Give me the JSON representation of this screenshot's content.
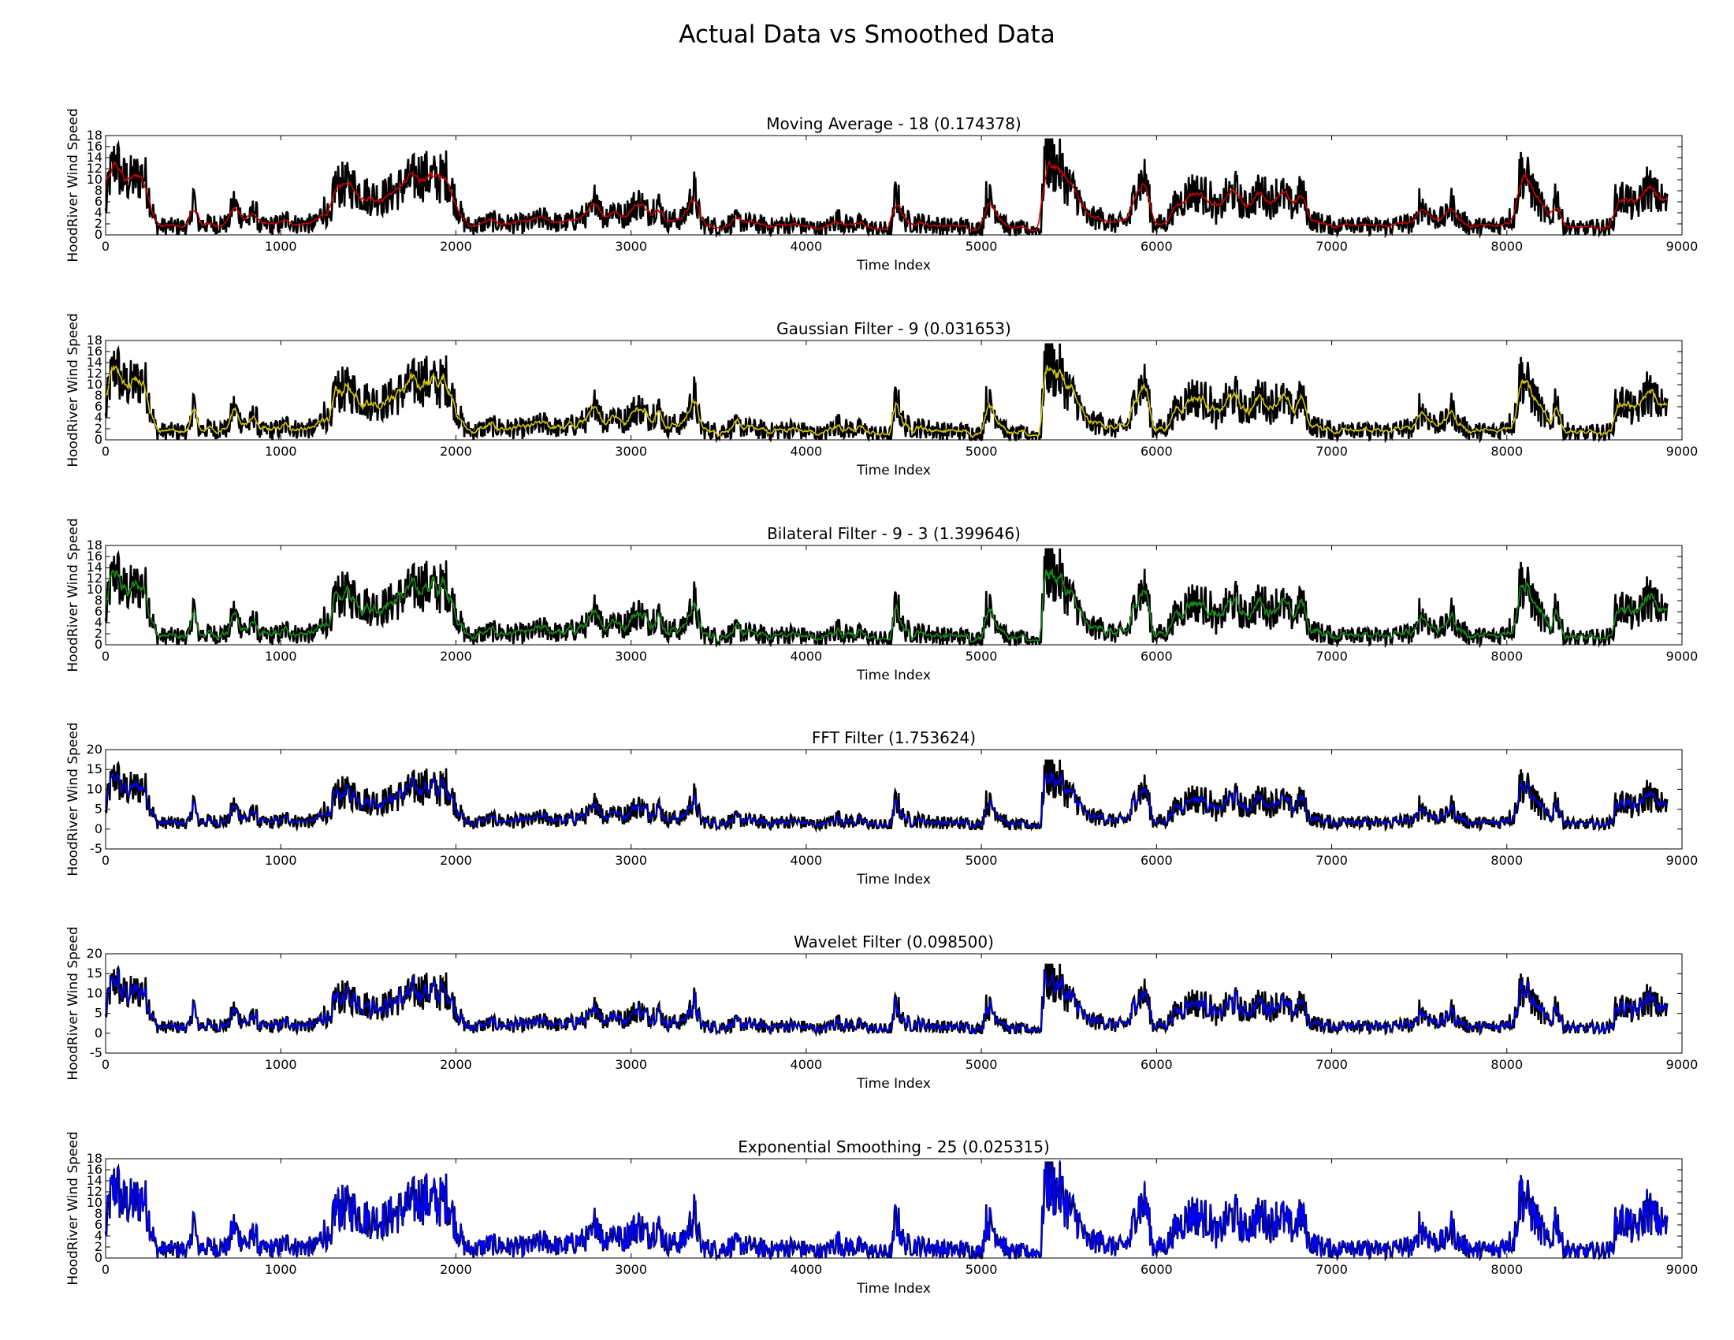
{
  "figure": {
    "title": "Actual Data vs Smoothed Data"
  },
  "chart_data": [
    {
      "type": "line",
      "title": "Moving Average - 18 (0.174378)",
      "xlabel": "Time Index",
      "ylabel": "HoodRiver Wind Speed",
      "xlim": [
        0,
        9000
      ],
      "ylim": [
        0,
        18
      ],
      "xticks": [
        0,
        1000,
        2000,
        3000,
        4000,
        5000,
        6000,
        7000,
        8000,
        9000
      ],
      "yticks": [
        0,
        2,
        4,
        6,
        8,
        10,
        12,
        14,
        16,
        18
      ],
      "smooth_window": 7,
      "series": [
        {
          "color": "#000000",
          "role": "actual"
        },
        {
          "color": "#cc0000",
          "role": "smoothed"
        }
      ]
    },
    {
      "type": "line",
      "title": "Gaussian Filter - 9 (0.031653)",
      "xlabel": "Time Index",
      "ylabel": "HoodRiver Wind Speed",
      "xlim": [
        0,
        9000
      ],
      "ylim": [
        0,
        18
      ],
      "xticks": [
        0,
        1000,
        2000,
        3000,
        4000,
        5000,
        6000,
        7000,
        8000,
        9000
      ],
      "yticks": [
        0,
        2,
        4,
        6,
        8,
        10,
        12,
        14,
        16,
        18
      ],
      "smooth_window": 4,
      "series": [
        {
          "color": "#000000",
          "role": "actual"
        },
        {
          "color": "#d4c60a",
          "role": "smoothed"
        }
      ]
    },
    {
      "type": "line",
      "title": "Bilateral Filter - 9 - 3 (1.399646)",
      "xlabel": "Time Index",
      "ylabel": "HoodRiver Wind Speed",
      "xlim": [
        0,
        9000
      ],
      "ylim": [
        0,
        18
      ],
      "xticks": [
        0,
        1000,
        2000,
        3000,
        4000,
        5000,
        6000,
        7000,
        8000,
        9000
      ],
      "yticks": [
        0,
        2,
        4,
        6,
        8,
        10,
        12,
        14,
        16,
        18
      ],
      "smooth_window": 3,
      "series": [
        {
          "color": "#000000",
          "role": "actual"
        },
        {
          "color": "#1a8c1a",
          "role": "smoothed"
        }
      ]
    },
    {
      "type": "line",
      "title": "FFT Filter (1.753624)",
      "xlabel": "Time Index",
      "ylabel": "HoodRiver Wind Speed",
      "xlim": [
        0,
        9000
      ],
      "ylim": [
        -5,
        20
      ],
      "xticks": [
        0,
        1000,
        2000,
        3000,
        4000,
        5000,
        6000,
        7000,
        8000,
        9000
      ],
      "yticks": [
        -5,
        0,
        5,
        10,
        15,
        20
      ],
      "smooth_window": 2,
      "series": [
        {
          "color": "#000000",
          "role": "actual"
        },
        {
          "color": "#0000ff",
          "role": "smoothed"
        }
      ]
    },
    {
      "type": "line",
      "title": "Wavelet Filter (0.098500)",
      "xlabel": "Time Index",
      "ylabel": "HoodRiver Wind Speed",
      "xlim": [
        0,
        9000
      ],
      "ylim": [
        -5,
        20
      ],
      "xticks": [
        0,
        1000,
        2000,
        3000,
        4000,
        5000,
        6000,
        7000,
        8000,
        9000
      ],
      "yticks": [
        -5,
        0,
        5,
        10,
        15,
        20
      ],
      "smooth_window": 1,
      "series": [
        {
          "color": "#000000",
          "role": "actual"
        },
        {
          "color": "#0000ff",
          "role": "smoothed"
        }
      ]
    },
    {
      "type": "line",
      "title": "Exponential Smoothing - 25 (0.025315)",
      "xlabel": "Time Index",
      "ylabel": "HoodRiver Wind Speed",
      "xlim": [
        0,
        9000
      ],
      "ylim": [
        0,
        18
      ],
      "xticks": [
        0,
        1000,
        2000,
        3000,
        4000,
        5000,
        6000,
        7000,
        8000,
        9000
      ],
      "yticks": [
        0,
        2,
        4,
        6,
        8,
        10,
        12,
        14,
        16,
        18
      ],
      "smooth_window": 0,
      "series": [
        {
          "color": "#000000",
          "role": "actual"
        },
        {
          "color": "#0000ff",
          "role": "smoothed"
        }
      ]
    }
  ],
  "series_profile": {
    "length": 8920,
    "segments": [
      [
        0,
        4
      ],
      [
        20,
        10
      ],
      [
        60,
        14
      ],
      [
        90,
        10
      ],
      [
        150,
        10
      ],
      [
        220,
        11
      ],
      [
        265,
        5
      ],
      [
        290,
        1.5
      ],
      [
        480,
        1.5
      ],
      [
        500,
        8
      ],
      [
        525,
        2
      ],
      [
        700,
        2
      ],
      [
        730,
        6
      ],
      [
        770,
        3.5
      ],
      [
        820,
        2.5
      ],
      [
        850,
        5
      ],
      [
        880,
        1.5
      ],
      [
        1000,
        2
      ],
      [
        1050,
        3
      ],
      [
        1080,
        2
      ],
      [
        1200,
        2
      ],
      [
        1250,
        5
      ],
      [
        1290,
        1.5
      ],
      [
        1300,
        9
      ],
      [
        1400,
        9
      ],
      [
        1500,
        7
      ],
      [
        1600,
        7
      ],
      [
        1700,
        9
      ],
      [
        1800,
        11
      ],
      [
        1900,
        10
      ],
      [
        1950,
        11
      ],
      [
        2000,
        6
      ],
      [
        2050,
        2
      ],
      [
        2100,
        1.5
      ],
      [
        2200,
        2.5
      ],
      [
        2300,
        2
      ],
      [
        2400,
        2
      ],
      [
        2500,
        3
      ],
      [
        2600,
        2
      ],
      [
        2700,
        3
      ],
      [
        2780,
        4
      ],
      [
        2800,
        8
      ],
      [
        2840,
        3
      ],
      [
        2900,
        5
      ],
      [
        2950,
        3
      ],
      [
        3000,
        5
      ],
      [
        3050,
        6
      ],
      [
        3100,
        4
      ],
      [
        3150,
        6
      ],
      [
        3200,
        2.5
      ],
      [
        3300,
        3
      ],
      [
        3360,
        8
      ],
      [
        3400,
        2
      ],
      [
        3500,
        1.5
      ],
      [
        3600,
        2.5
      ],
      [
        3700,
        2
      ],
      [
        3800,
        1.5
      ],
      [
        3900,
        2
      ],
      [
        4000,
        1.5
      ],
      [
        4100,
        1
      ],
      [
        4180,
        3
      ],
      [
        4220,
        2
      ],
      [
        4300,
        2
      ],
      [
        4400,
        1
      ],
      [
        4490,
        1
      ],
      [
        4510,
        8
      ],
      [
        4560,
        2.5
      ],
      [
        4700,
        2
      ],
      [
        4800,
        1.5
      ],
      [
        4900,
        1.5
      ],
      [
        5000,
        1
      ],
      [
        5030,
        7
      ],
      [
        5100,
        4
      ],
      [
        5150,
        1
      ],
      [
        5340,
        1
      ],
      [
        5360,
        14
      ],
      [
        5450,
        12
      ],
      [
        5500,
        9
      ],
      [
        5550,
        7
      ],
      [
        5600,
        3
      ],
      [
        5700,
        3
      ],
      [
        5750,
        2
      ],
      [
        5800,
        2
      ],
      [
        5850,
        3
      ],
      [
        5880,
        9
      ],
      [
        5940,
        10
      ],
      [
        5980,
        2
      ],
      [
        6050,
        2
      ],
      [
        6100,
        5
      ],
      [
        6200,
        8
      ],
      [
        6300,
        7
      ],
      [
        6350,
        4
      ],
      [
        6400,
        7
      ],
      [
        6450,
        8
      ],
      [
        6500,
        5
      ],
      [
        6600,
        8
      ],
      [
        6650,
        6
      ],
      [
        6700,
        8
      ],
      [
        6780,
        5
      ],
      [
        6830,
        8
      ],
      [
        6870,
        3
      ],
      [
        6950,
        2
      ],
      [
        7050,
        1.5
      ],
      [
        7100,
        3
      ],
      [
        7150,
        1.5
      ],
      [
        7300,
        1.5
      ],
      [
        7400,
        2
      ],
      [
        7480,
        2
      ],
      [
        7500,
        6
      ],
      [
        7580,
        3
      ],
      [
        7650,
        3
      ],
      [
        7680,
        6
      ],
      [
        7720,
        3
      ],
      [
        7800,
        1.5
      ],
      [
        7950,
        1.5
      ],
      [
        8000,
        3
      ],
      [
        8040,
        3
      ],
      [
        8080,
        12
      ],
      [
        8150,
        8
      ],
      [
        8200,
        5
      ],
      [
        8250,
        2
      ],
      [
        8280,
        8
      ],
      [
        8320,
        2
      ],
      [
        8400,
        1
      ],
      [
        8600,
        1.5
      ],
      [
        8620,
        6
      ],
      [
        8680,
        7
      ],
      [
        8720,
        5
      ],
      [
        8760,
        6
      ],
      [
        8800,
        9
      ],
      [
        8850,
        7
      ],
      [
        8900,
        6
      ],
      [
        8920,
        5
      ]
    ]
  }
}
